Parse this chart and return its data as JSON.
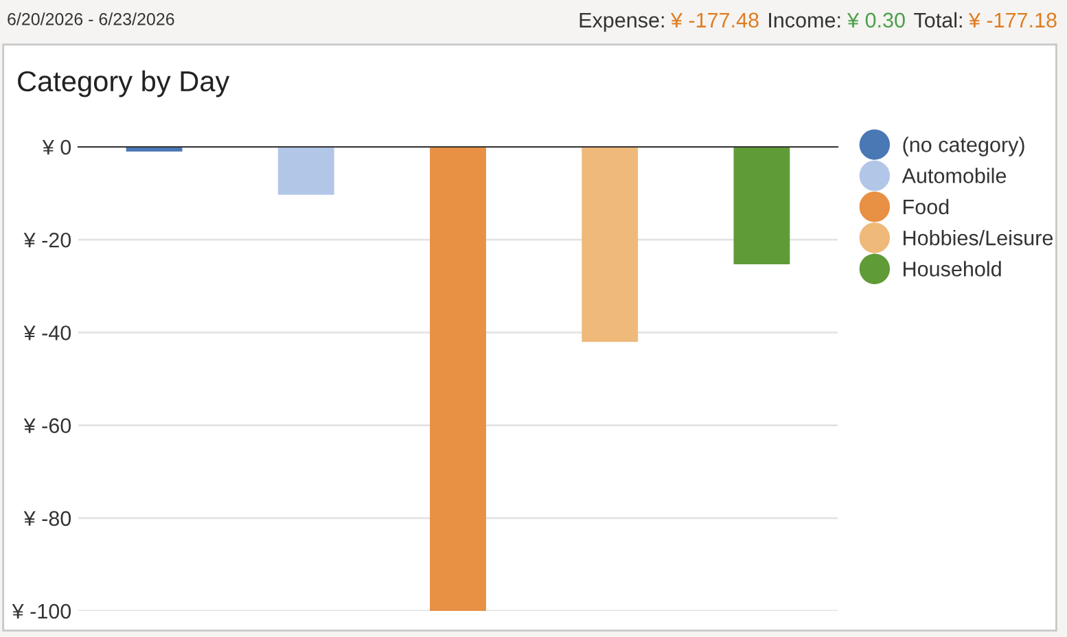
{
  "chart_data": {
    "type": "bar",
    "title": "Category by Day",
    "annotations": [
      "6/20/2026 - 6/23/2026",
      "Expense:",
      "¥ -177.48",
      "Income:",
      "¥ 0.30",
      "Total:",
      "¥ -177.18"
    ],
    "categories": [
      null
    ],
    "series": [
      {
        "name": "(no category)",
        "color": "#4a78b5",
        "values": [
          -1
        ]
      },
      {
        "name": "Automobile",
        "color": "#b2c6e8",
        "values": [
          -10.3
        ]
      },
      {
        "name": "Food",
        "color": "#e89044",
        "values": [
          -100
        ]
      },
      {
        "name": "Hobbies/Leisure",
        "color": "#efb97a",
        "values": [
          -42
        ]
      },
      {
        "name": "Household",
        "color": "#5f9b37",
        "values": [
          -25.3
        ]
      }
    ],
    "ylim": [
      -100,
      0
    ],
    "yticks": [
      {
        "value": 0,
        "label": "¥ 0"
      },
      {
        "value": -20,
        "label": "¥ -20"
      },
      {
        "value": -40,
        "label": "¥ -40"
      },
      {
        "value": -60,
        "label": "¥ -60"
      },
      {
        "value": -80,
        "label": "¥ -80"
      },
      {
        "value": -100,
        "label": "¥ -100"
      }
    ],
    "grid": "y",
    "legend": "right"
  }
}
